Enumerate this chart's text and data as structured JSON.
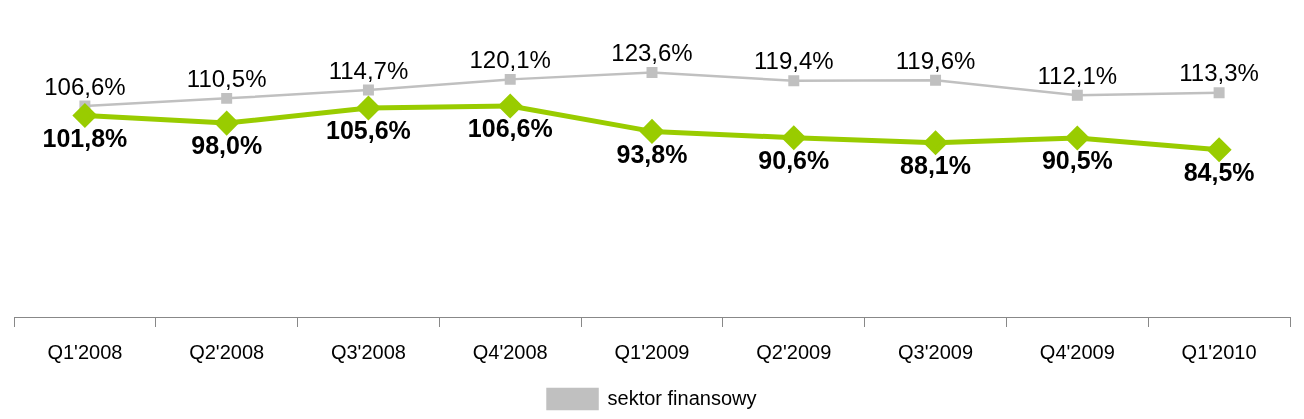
{
  "chart_data": {
    "type": "line",
    "categories": [
      "Q1'2008",
      "Q2'2008",
      "Q3'2008",
      "Q4'2008",
      "Q1'2009",
      "Q2'2009",
      "Q3'2009",
      "Q4'2009",
      "Q1'2010"
    ],
    "series": [
      {
        "color": "#99cc00",
        "marker": "diamond",
        "values": [
          101.8,
          98.0,
          105.6,
          106.6,
          93.8,
          90.6,
          88.1,
          90.5,
          84.5
        ],
        "value_labels": [
          "101,8%",
          "98,0%",
          "105,6%",
          "106,6%",
          "93,8%",
          "90,6%",
          "88,1%",
          "90,5%",
          "84,5%"
        ]
      },
      {
        "name": "sektor finansowy",
        "color": "#c0c0c0",
        "marker": "square",
        "values": [
          106.6,
          110.5,
          114.7,
          120.1,
          123.6,
          119.4,
          119.6,
          112.1,
          113.3
        ],
        "value_labels": [
          "106,6%",
          "110,5%",
          "114,7%",
          "120,1%",
          "123,6%",
          "119,4%",
          "119,6%",
          "112,1%",
          "113,3%"
        ]
      }
    ],
    "tick_labels": "x",
    "legend": "bottom",
    "line_style": "solid"
  }
}
